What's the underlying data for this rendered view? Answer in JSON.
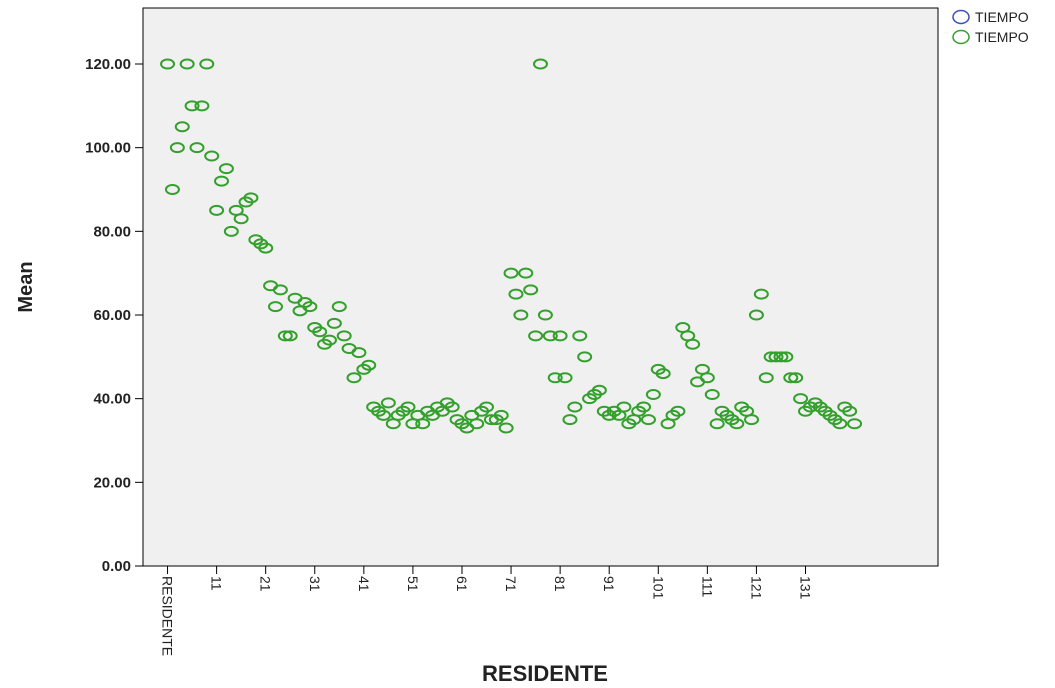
{
  "chart_data": {
    "type": "scatter",
    "title": "",
    "xlabel": "RESIDENTE",
    "ylabel": "Mean",
    "ylim": [
      0,
      125
    ],
    "yticks": [
      "0.00",
      "20.00",
      "40.00",
      "60.00",
      "80.00",
      "100.00",
      "120.00"
    ],
    "ytick_values": [
      0,
      20,
      40,
      60,
      80,
      100,
      120
    ],
    "xtick_labels": [
      "RESIDENTE",
      "11",
      "21",
      "31",
      "41",
      "51",
      "61",
      "71",
      "81",
      "91",
      "101",
      "111",
      "121",
      "131"
    ],
    "xtick_values": [
      1,
      11,
      21,
      31,
      41,
      51,
      61,
      71,
      81,
      91,
      101,
      111,
      121,
      131
    ],
    "xlim": [
      -4,
      158
    ],
    "grid": false,
    "legend_position": "top-right",
    "legend": [
      {
        "label": "TIEMPO",
        "color": "#3b4fb8"
      },
      {
        "label": "TIEMPO",
        "color": "#33a02c"
      }
    ],
    "series": [
      {
        "name": "TIEMPO",
        "color": "#33a02c",
        "y": [
          120,
          90,
          100,
          105,
          120,
          110,
          100,
          110,
          120,
          98,
          85,
          92,
          95,
          80,
          85,
          83,
          87,
          88,
          78,
          77,
          76,
          67,
          62,
          66,
          55,
          55,
          64,
          61,
          63,
          62,
          57,
          56,
          53,
          54,
          58,
          62,
          55,
          52,
          45,
          51,
          47,
          48,
          38,
          37,
          36,
          39,
          34,
          36,
          37,
          38,
          34,
          36,
          34,
          37,
          36,
          38,
          37,
          39,
          38,
          35,
          34,
          33,
          36,
          34,
          37,
          38,
          35,
          35,
          36,
          33,
          70,
          65,
          60,
          70,
          66,
          55,
          120,
          60,
          55,
          45,
          55,
          45,
          35,
          38,
          55,
          50,
          40,
          41,
          42,
          37,
          36,
          37,
          36,
          38,
          34,
          35,
          37,
          38,
          35,
          41,
          47,
          46,
          34,
          36,
          37,
          57,
          55,
          53,
          44,
          47,
          45,
          41,
          34,
          37,
          36,
          35,
          34,
          38,
          37,
          35,
          60,
          65,
          45,
          50,
          50,
          50,
          50,
          45,
          45,
          40,
          37,
          38,
          39,
          38,
          37,
          36,
          35,
          34,
          38,
          37,
          34
        ]
      }
    ]
  }
}
